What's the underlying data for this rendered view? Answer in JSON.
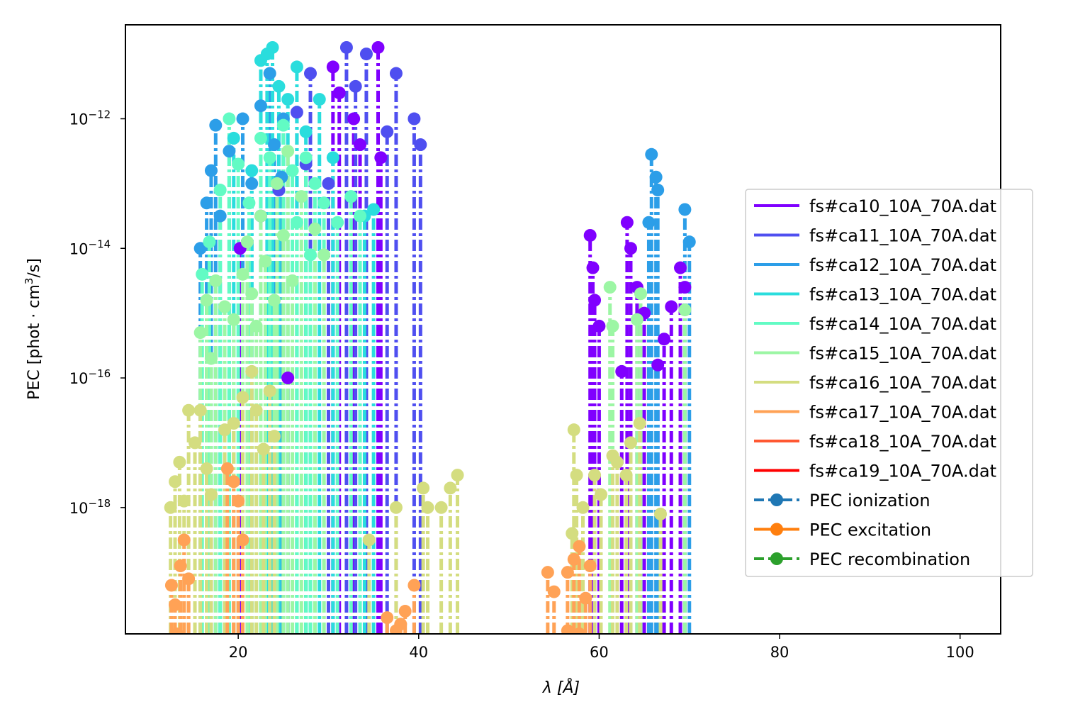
{
  "chart_data": {
    "type": "scatter",
    "xlabel": "λ [Å]",
    "ylabel_text": "PEC [phot · cm",
    "ylabel_sup": "3",
    "ylabel_tail": "/s]",
    "y_scale": "log",
    "xlim": [
      7.5,
      104.5
    ],
    "ylim_exp": [
      -19.95,
      -10.55
    ],
    "x_ticks": [
      {
        "value": 20,
        "label": "20"
      },
      {
        "value": 40,
        "label": "40"
      },
      {
        "value": 60,
        "label": "60"
      },
      {
        "value": 80,
        "label": "80"
      },
      {
        "value": 100,
        "label": "100"
      }
    ],
    "y_ticks": [
      {
        "exp": -12,
        "base": "10",
        "sup": "−12"
      },
      {
        "exp": -14,
        "base": "10",
        "sup": "−14"
      },
      {
        "exp": -16,
        "base": "10",
        "sup": "−16"
      },
      {
        "exp": -18,
        "base": "10",
        "sup": "−18"
      }
    ],
    "legend_position": "center-right",
    "series": [
      {
        "name": "fs#ca10_10A_70A.dat",
        "color": "#8000ff",
        "points": [
          [
            30.5,
            -11.2
          ],
          [
            31.2,
            -11.6
          ],
          [
            32.8,
            -12.0
          ],
          [
            35.5,
            -10.9
          ],
          [
            35.8,
            -12.6
          ],
          [
            33.5,
            -12.4
          ],
          [
            59.0,
            -13.8
          ],
          [
            59.3,
            -14.3
          ],
          [
            59.5,
            -14.8
          ],
          [
            60.0,
            -15.2
          ],
          [
            62.5,
            -15.9
          ],
          [
            63.1,
            -13.6
          ],
          [
            63.5,
            -14.0
          ],
          [
            64.2,
            -14.6
          ],
          [
            65.0,
            -15.0
          ],
          [
            66.5,
            -15.8
          ],
          [
            67.2,
            -15.4
          ],
          [
            68.0,
            -14.9
          ],
          [
            69.0,
            -14.3
          ],
          [
            69.5,
            -14.6
          ],
          [
            25.5,
            -16.0
          ],
          [
            20.2,
            -14.0
          ]
        ]
      },
      {
        "name": "fs#ca11_10A_70A.dat",
        "color": "#4f4ff0",
        "points": [
          [
            32.0,
            -10.9
          ],
          [
            33.0,
            -11.5
          ],
          [
            34.2,
            -11.0
          ],
          [
            36.5,
            -12.2
          ],
          [
            37.5,
            -11.3
          ],
          [
            39.5,
            -12.0
          ],
          [
            40.2,
            -12.4
          ],
          [
            28.0,
            -11.3
          ],
          [
            26.5,
            -11.9
          ],
          [
            30.0,
            -13.0
          ],
          [
            22.5,
            -13.5
          ],
          [
            24.5,
            -13.1
          ],
          [
            27.5,
            -12.7
          ]
        ]
      },
      {
        "name": "fs#ca12_10A_70A.dat",
        "color": "#2c9ee8",
        "points": [
          [
            15.8,
            -14.0
          ],
          [
            16.5,
            -13.3
          ],
          [
            17.0,
            -12.8
          ],
          [
            17.5,
            -12.1
          ],
          [
            18.0,
            -13.5
          ],
          [
            19.0,
            -12.5
          ],
          [
            20.5,
            -12.0
          ],
          [
            21.5,
            -13.0
          ],
          [
            22.5,
            -11.8
          ],
          [
            23.5,
            -11.3
          ],
          [
            24.0,
            -12.4
          ],
          [
            25.0,
            -12.0
          ],
          [
            65.8,
            -12.55
          ],
          [
            66.5,
            -13.1
          ],
          [
            66.3,
            -12.9
          ],
          [
            65.5,
            -13.6
          ],
          [
            69.5,
            -13.4
          ],
          [
            70.0,
            -13.9
          ],
          [
            24.8,
            -12.9
          ]
        ]
      },
      {
        "name": "fs#ca13_10A_70A.dat",
        "color": "#2adddd",
        "points": [
          [
            22.5,
            -11.1
          ],
          [
            23.2,
            -11.0
          ],
          [
            23.8,
            -10.9
          ],
          [
            24.5,
            -11.5
          ],
          [
            25.5,
            -11.7
          ],
          [
            26.5,
            -11.2
          ],
          [
            27.5,
            -12.2
          ],
          [
            29.0,
            -11.7
          ],
          [
            30.5,
            -12.6
          ],
          [
            19.5,
            -12.3
          ],
          [
            21.5,
            -12.8
          ],
          [
            34.0,
            -13.5
          ],
          [
            35.0,
            -13.4
          ]
        ]
      },
      {
        "name": "fs#ca14_10A_70A.dat",
        "color": "#62fbc4",
        "points": [
          [
            16.0,
            -14.4
          ],
          [
            16.8,
            -13.9
          ],
          [
            18.0,
            -13.1
          ],
          [
            19.0,
            -12.0
          ],
          [
            20.0,
            -12.7
          ],
          [
            21.2,
            -13.3
          ],
          [
            22.5,
            -12.3
          ],
          [
            23.5,
            -12.6
          ],
          [
            25.0,
            -12.1
          ],
          [
            26.0,
            -12.8
          ],
          [
            27.5,
            -12.6
          ],
          [
            28.5,
            -13.0
          ],
          [
            29.5,
            -13.3
          ],
          [
            31.0,
            -13.6
          ],
          [
            32.5,
            -13.2
          ],
          [
            26.5,
            -13.6
          ],
          [
            28.0,
            -14.1
          ],
          [
            33.5,
            -13.5
          ]
        ]
      },
      {
        "name": "fs#ca15_10A_70A.dat",
        "color": "#9cf6a4",
        "points": [
          [
            15.8,
            -15.3
          ],
          [
            16.5,
            -14.8
          ],
          [
            17.0,
            -15.7
          ],
          [
            17.5,
            -14.5
          ],
          [
            18.5,
            -14.9
          ],
          [
            19.5,
            -15.1
          ],
          [
            20.5,
            -14.4
          ],
          [
            21.0,
            -13.9
          ],
          [
            21.5,
            -14.7
          ],
          [
            22.0,
            -15.2
          ],
          [
            22.5,
            -13.5
          ],
          [
            23.0,
            -14.2
          ],
          [
            24.0,
            -14.8
          ],
          [
            25.0,
            -13.8
          ],
          [
            26.0,
            -14.5
          ],
          [
            27.0,
            -13.2
          ],
          [
            28.5,
            -13.7
          ],
          [
            29.5,
            -14.1
          ],
          [
            61.2,
            -14.6
          ],
          [
            61.5,
            -15.2
          ],
          [
            64.2,
            -15.1
          ],
          [
            64.6,
            -14.7
          ],
          [
            69.5,
            -14.95
          ],
          [
            24.3,
            -13.0
          ],
          [
            25.5,
            -12.5
          ]
        ]
      },
      {
        "name": "fs#ca16_10A_70A.dat",
        "color": "#d4dd80",
        "points": [
          [
            12.5,
            -18.0
          ],
          [
            13.0,
            -17.6
          ],
          [
            13.5,
            -17.3
          ],
          [
            14.0,
            -17.9
          ],
          [
            14.5,
            -16.5
          ],
          [
            15.2,
            -17.0
          ],
          [
            15.8,
            -16.5
          ],
          [
            16.5,
            -17.4
          ],
          [
            17.0,
            -17.8
          ],
          [
            18.5,
            -16.8
          ],
          [
            19.5,
            -16.7
          ],
          [
            20.5,
            -16.3
          ],
          [
            21.5,
            -15.9
          ],
          [
            22.0,
            -16.5
          ],
          [
            22.8,
            -17.1
          ],
          [
            23.5,
            -16.2
          ],
          [
            24.0,
            -16.9
          ],
          [
            34.5,
            -18.5
          ],
          [
            37.5,
            -18.0
          ],
          [
            40.5,
            -17.7
          ],
          [
            41.0,
            -18.0
          ],
          [
            42.5,
            -18.0
          ],
          [
            43.5,
            -17.7
          ],
          [
            44.3,
            -17.5
          ],
          [
            57.2,
            -16.8
          ],
          [
            57.5,
            -17.5
          ],
          [
            58.2,
            -18.0
          ],
          [
            59.5,
            -17.5
          ],
          [
            60.2,
            -17.8
          ],
          [
            61.5,
            -17.2
          ],
          [
            62.0,
            -17.3
          ],
          [
            63.0,
            -17.5
          ],
          [
            63.5,
            -17.0
          ],
          [
            64.5,
            -16.7
          ],
          [
            66.8,
            -18.1
          ],
          [
            57.0,
            -18.4
          ]
        ]
      },
      {
        "name": "fs#ca17_10A_70A.dat",
        "color": "#ffa256",
        "points": [
          [
            12.6,
            -19.2
          ],
          [
            13.0,
            -19.5
          ],
          [
            13.6,
            -18.9
          ],
          [
            14.0,
            -18.5
          ],
          [
            14.5,
            -19.1
          ],
          [
            13.2,
            -19.95
          ],
          [
            18.8,
            -17.4
          ],
          [
            19.5,
            -17.6
          ],
          [
            20.0,
            -17.9
          ],
          [
            20.5,
            -18.5
          ],
          [
            36.5,
            -19.7
          ],
          [
            37.5,
            -19.9
          ],
          [
            38.0,
            -19.8
          ],
          [
            38.5,
            -19.6
          ],
          [
            39.5,
            -19.2
          ],
          [
            54.3,
            -19.0
          ],
          [
            55.0,
            -19.3
          ],
          [
            56.5,
            -19.0
          ],
          [
            57.2,
            -18.8
          ],
          [
            57.8,
            -18.6
          ],
          [
            58.5,
            -19.4
          ],
          [
            59.0,
            -18.9
          ],
          [
            57.8,
            -19.95
          ],
          [
            56.5,
            -19.9
          ]
        ]
      },
      {
        "name": "fs#ca18_10A_70A.dat",
        "color": "#ff5832",
        "points": []
      },
      {
        "name": "fs#ca19_10A_70A.dat",
        "color": "#ff0000",
        "points": []
      }
    ],
    "legend_markers": [
      {
        "name": "PEC ionization",
        "color": "#1f77b4",
        "dash": true
      },
      {
        "name": "PEC excitation",
        "color": "#ff7f0e",
        "dash": false
      },
      {
        "name": "PEC recombination",
        "color": "#2ca02c",
        "dash": true
      }
    ]
  }
}
